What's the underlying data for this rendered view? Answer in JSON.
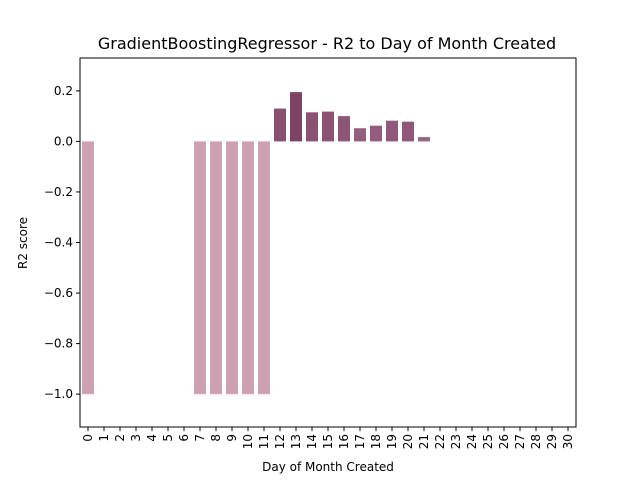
{
  "chart_data": {
    "type": "bar",
    "title": "GradientBoostingRegressor - R2 to Day of Month Created",
    "xlabel": "Day of Month Created",
    "ylabel": "R2 score",
    "ylim": [
      -1.13,
      0.33
    ],
    "yticks": [
      -1.0,
      -0.8,
      -0.6,
      -0.4,
      -0.2,
      0.0,
      0.2
    ],
    "ytick_labels": [
      "−1.0",
      "−0.8",
      "−0.6",
      "−0.4",
      "−0.2",
      "0.0",
      "0.2"
    ],
    "categories": [
      "0",
      "1",
      "2",
      "3",
      "4",
      "5",
      "6",
      "7",
      "8",
      "9",
      "10",
      "11",
      "12",
      "13",
      "14",
      "15",
      "16",
      "17",
      "18",
      "19",
      "20",
      "21",
      "22",
      "23",
      "24",
      "25",
      "26",
      "27",
      "28",
      "29",
      "30"
    ],
    "values": [
      -1.0,
      null,
      null,
      null,
      null,
      null,
      null,
      -1.0,
      -1.0,
      -1.0,
      -1.0,
      -1.0,
      0.13,
      0.195,
      0.115,
      0.118,
      0.1,
      0.052,
      0.062,
      0.082,
      0.078,
      0.017,
      null,
      null,
      null,
      null,
      null,
      null,
      null,
      null,
      null
    ],
    "colors": {
      "negative_bar": "#cf9fb4",
      "positive_bar_light": "#9b6384",
      "positive_bar_dark": "#7d4466"
    },
    "grid": false,
    "legend": "none"
  }
}
